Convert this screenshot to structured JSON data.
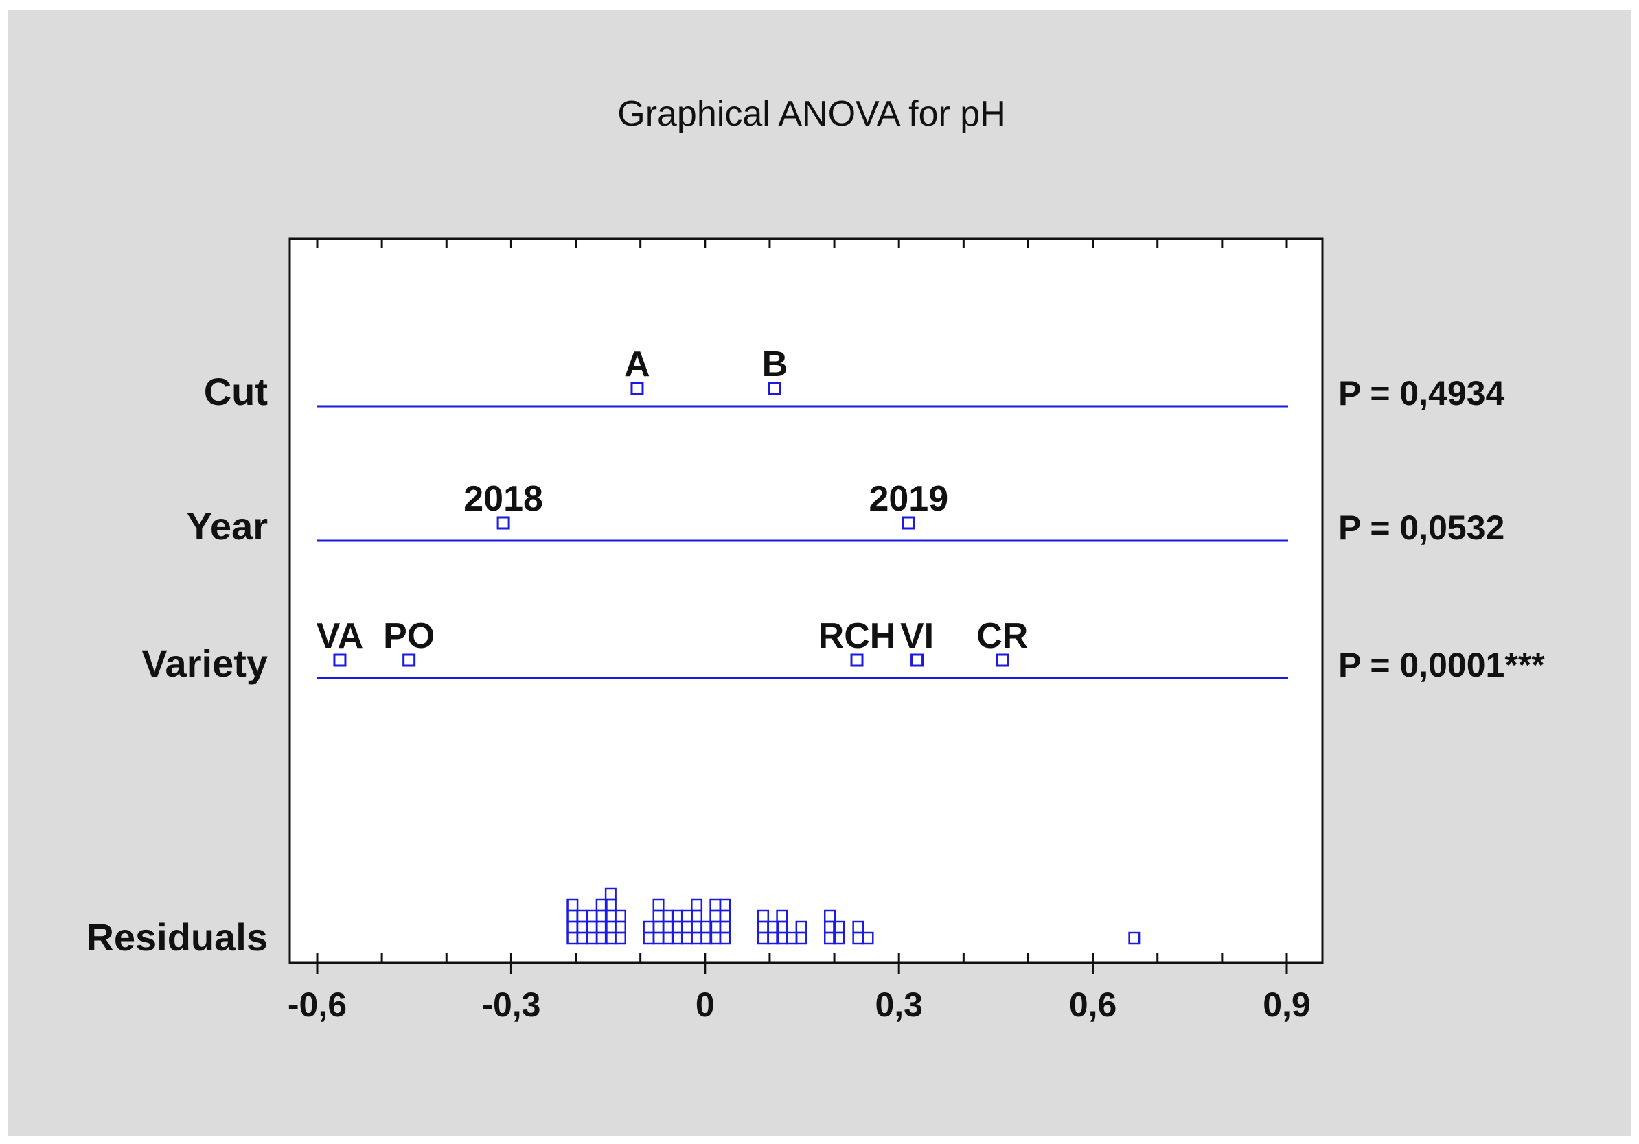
{
  "chart_data": {
    "type": "scatter",
    "title": "Graphical ANOVA for pH",
    "xlim": [
      -0.6,
      0.9
    ],
    "x_ticks": [
      {
        "value": -0.6,
        "label": "-0,6"
      },
      {
        "value": -0.3,
        "label": "-0,3"
      },
      {
        "value": 0.0,
        "label": "0"
      },
      {
        "value": 0.3,
        "label": "0,3"
      },
      {
        "value": 0.6,
        "label": "0,6"
      },
      {
        "value": 0.9,
        "label": "0,9"
      }
    ],
    "minor_tick_step": 0.1,
    "factors": [
      {
        "name": "Cut",
        "p_value": "P = 0,4934",
        "levels": [
          {
            "label": "A",
            "x": -0.105
          },
          {
            "label": "B",
            "x": 0.108
          }
        ]
      },
      {
        "name": "Year",
        "p_value": "P = 0,0532",
        "levels": [
          {
            "label": "2018",
            "x": -0.312
          },
          {
            "label": "2019",
            "x": 0.315
          }
        ]
      },
      {
        "name": "Variety",
        "p_value": "P = 0,0001***",
        "levels": [
          {
            "label": "VA",
            "x": -0.565
          },
          {
            "label": "PO",
            "x": -0.458
          },
          {
            "label": "RCH",
            "x": 0.235
          },
          {
            "label": "VI",
            "x": 0.328
          },
          {
            "label": "CR",
            "x": 0.46
          }
        ]
      }
    ],
    "residuals": {
      "name": "Residuals",
      "bin_width": 0.0147,
      "bins": [
        {
          "x": -0.205,
          "count": 4
        },
        {
          "x": -0.19,
          "count": 3
        },
        {
          "x": -0.175,
          "count": 3
        },
        {
          "x": -0.16,
          "count": 4
        },
        {
          "x": -0.146,
          "count": 5
        },
        {
          "x": -0.131,
          "count": 3
        },
        {
          "x": -0.087,
          "count": 2
        },
        {
          "x": -0.072,
          "count": 4
        },
        {
          "x": -0.057,
          "count": 3
        },
        {
          "x": -0.043,
          "count": 3
        },
        {
          "x": -0.028,
          "count": 3
        },
        {
          "x": -0.013,
          "count": 4
        },
        {
          "x": 0.002,
          "count": 2
        },
        {
          "x": 0.016,
          "count": 4
        },
        {
          "x": 0.031,
          "count": 4
        },
        {
          "x": 0.09,
          "count": 3
        },
        {
          "x": 0.105,
          "count": 2
        },
        {
          "x": 0.119,
          "count": 3
        },
        {
          "x": 0.134,
          "count": 1
        },
        {
          "x": 0.149,
          "count": 2
        },
        {
          "x": 0.193,
          "count": 3
        },
        {
          "x": 0.207,
          "count": 2
        },
        {
          "x": 0.237,
          "count": 2
        },
        {
          "x": 0.252,
          "count": 1
        },
        {
          "x": 0.664,
          "count": 1
        }
      ]
    },
    "colors": {
      "series": "#1a1ae0",
      "panel_background": "#dcdcdc",
      "plot_background": "#ffffff",
      "text": "#111111"
    }
  }
}
